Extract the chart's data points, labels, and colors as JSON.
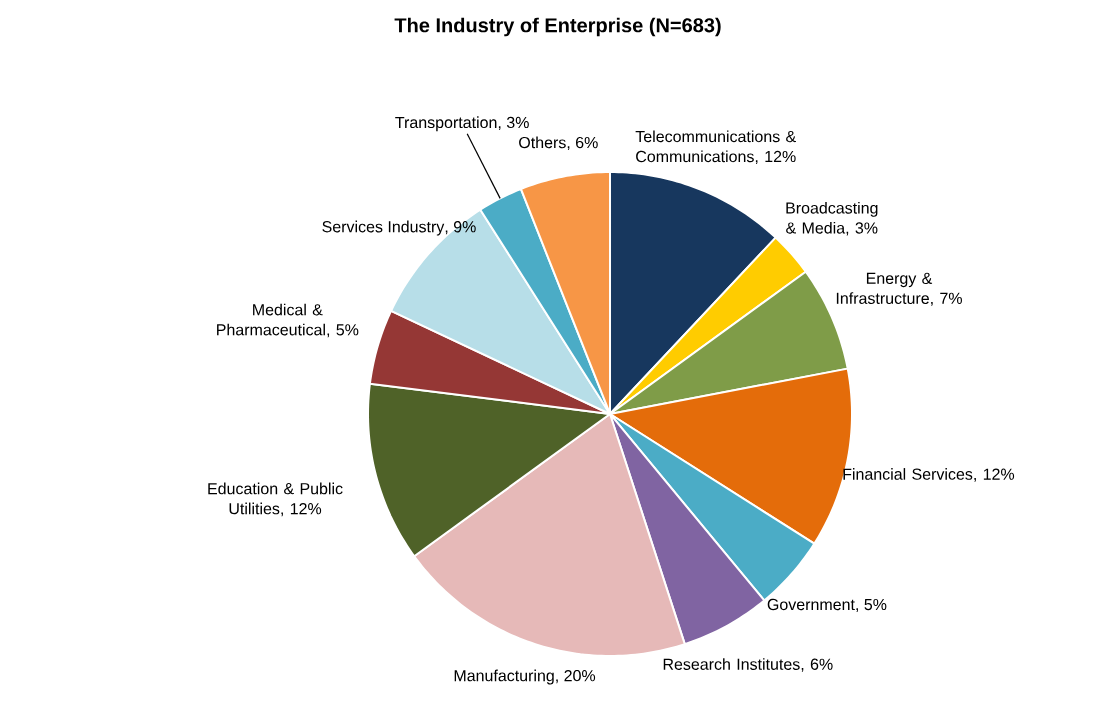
{
  "chart_data": {
    "type": "pie",
    "title": "The Industry of Enterprise (N=683)",
    "categories": [
      "Telecommunications & Communications",
      "Broadcasting & Media",
      "Energy & Infrastructure",
      "Financial Services",
      "Government",
      "Research Institutes",
      "Manufacturing",
      "Education & Public Utilities",
      "Medical & Pharmaceutical",
      "Services Industry",
      "Transportation",
      "Others"
    ],
    "values": [
      12,
      3,
      7,
      12,
      5,
      6,
      20,
      12,
      5,
      9,
      3,
      6
    ],
    "value_labels": [
      ", 12%",
      ", 3%",
      ", 7%",
      ", 12%",
      ", 5%",
      ", 6%",
      ", 20%",
      ", 12%",
      ", 5%",
      ", 9%",
      ", 3%",
      ", 6%"
    ],
    "colors": [
      "#17375e",
      "#ffcc00",
      "#7f9c48",
      "#e46c0a",
      "#4bacc6",
      "#8064a2",
      "#e6b9b8",
      "#4f6228",
      "#953735",
      "#b7dee8",
      "#4bacc6",
      "#f79646"
    ]
  }
}
